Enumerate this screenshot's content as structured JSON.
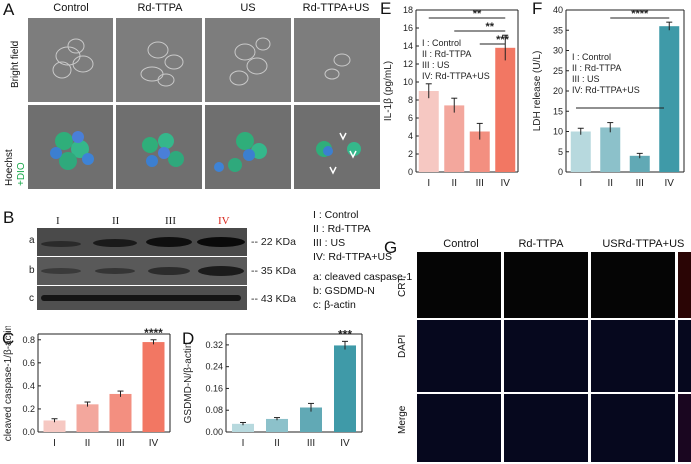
{
  "panels": {
    "A": {
      "label": "A",
      "columns": [
        "Control",
        "Rd-TTPA",
        "US",
        "Rd-TTPA+US"
      ],
      "rows": {
        "bright": "Bright field",
        "hoechst": "Hoechst",
        "dio": "+DIO"
      }
    },
    "B": {
      "label": "B",
      "lanes": [
        "I",
        "II",
        "III",
        "IV"
      ],
      "row_letters": [
        "a",
        "b",
        "c"
      ],
      "markers": [
        "-- 22 KDa",
        "-- 35 KDa",
        "-- 43 KDa"
      ],
      "legend_groups": [
        "I : Control",
        "II : Rd-TTPA",
        "III : US"
      ],
      "legend_group4": "IV: Rd-TTPA+US",
      "legend_proteins": [
        "a: cleaved caspase-1",
        "b: GSDMD-N",
        "c: β-actin"
      ]
    },
    "G": {
      "label": "G",
      "columns": [
        "Control",
        "Rd-TTPA",
        "US",
        "Rd-TTPA+US"
      ],
      "rows": [
        "CRT",
        "DAPI",
        "Merge"
      ]
    }
  },
  "colors": {
    "I": "#f6c8c2",
    "II": "#f3a79d",
    "III": "#f38f80",
    "IV": "#f27763",
    "teal_I": "#b7d9de",
    "teal_II": "#8cc1ca",
    "teal_III": "#61a9b5",
    "teal_IV": "#3f9aa8",
    "red_label": "#d9261c",
    "signif": "#222222"
  },
  "chart_data": [
    {
      "id": "C",
      "label": "C",
      "type": "bar",
      "categories": [
        "I",
        "II",
        "III",
        "IV"
      ],
      "values": [
        0.1,
        0.24,
        0.33,
        0.78
      ],
      "errors": [
        0.015,
        0.02,
        0.025,
        0.02
      ],
      "ylabel": "cleaved caspase-1/β-actin",
      "ylim": [
        0.0,
        0.85
      ],
      "yticks": [
        "0.0",
        "0.2",
        "0.4",
        "0.6",
        "0.8"
      ],
      "ytick_values": [
        0.0,
        0.2,
        0.4,
        0.6,
        0.8
      ],
      "annotation": "****",
      "palette": "red"
    },
    {
      "id": "D",
      "label": "D",
      "type": "bar",
      "categories": [
        "I",
        "II",
        "III",
        "IV"
      ],
      "values": [
        0.03,
        0.048,
        0.09,
        0.318
      ],
      "errors": [
        0.005,
        0.005,
        0.015,
        0.015
      ],
      "ylabel": "GSDMD-N/β-actin",
      "ylim": [
        0.0,
        0.36
      ],
      "yticks": [
        "0.00",
        "0.08",
        "0.16",
        "0.24",
        "0.32"
      ],
      "ytick_values": [
        0.0,
        0.08,
        0.16,
        0.24,
        0.32
      ],
      "annotation": "***",
      "palette": "teal"
    },
    {
      "id": "E",
      "label": "E",
      "type": "bar",
      "categories": [
        "I",
        "II",
        "III",
        "IV"
      ],
      "values": [
        9.0,
        7.4,
        4.5,
        13.8
      ],
      "errors": [
        0.8,
        0.8,
        0.9,
        1.4
      ],
      "ylabel": "IL-1β (pg/mL)",
      "ylim": [
        0,
        18
      ],
      "yticks": [
        "0",
        "2",
        "4",
        "6",
        "8",
        "10",
        "12",
        "14",
        "16",
        "18"
      ],
      "ytick_values": [
        0,
        2,
        4,
        6,
        8,
        10,
        12,
        14,
        16,
        18
      ],
      "legend": [
        "I : Control",
        "II : Rd-TTPA",
        "III : US",
        "IV: Rd-TTPA+US"
      ],
      "significance": [
        {
          "from": 0,
          "to": 3,
          "label": "**"
        },
        {
          "from": 1,
          "to": 3,
          "label": "**"
        },
        {
          "from": 2,
          "to": 3,
          "label": "***"
        }
      ],
      "palette": "red"
    },
    {
      "id": "F",
      "label": "F",
      "type": "bar",
      "categories": [
        "I",
        "II",
        "III",
        "IV"
      ],
      "values": [
        10.0,
        11.0,
        4.0,
        36.0
      ],
      "errors": [
        0.8,
        1.2,
        0.6,
        1.0
      ],
      "ylabel": "LDH release (U/L)",
      "ylim": [
        0,
        40
      ],
      "yticks": [
        "0",
        "5",
        "10",
        "15",
        "20",
        "25",
        "30",
        "35",
        "40"
      ],
      "ytick_values": [
        0,
        5,
        10,
        15,
        20,
        25,
        30,
        35,
        40
      ],
      "legend": [
        "I : Control",
        "II : Rd-TTPA",
        "III : US",
        "IV: Rd-TTPA+US"
      ],
      "significance": [
        {
          "from": 1,
          "to": 3,
          "label": "****"
        }
      ],
      "palette": "teal"
    }
  ]
}
